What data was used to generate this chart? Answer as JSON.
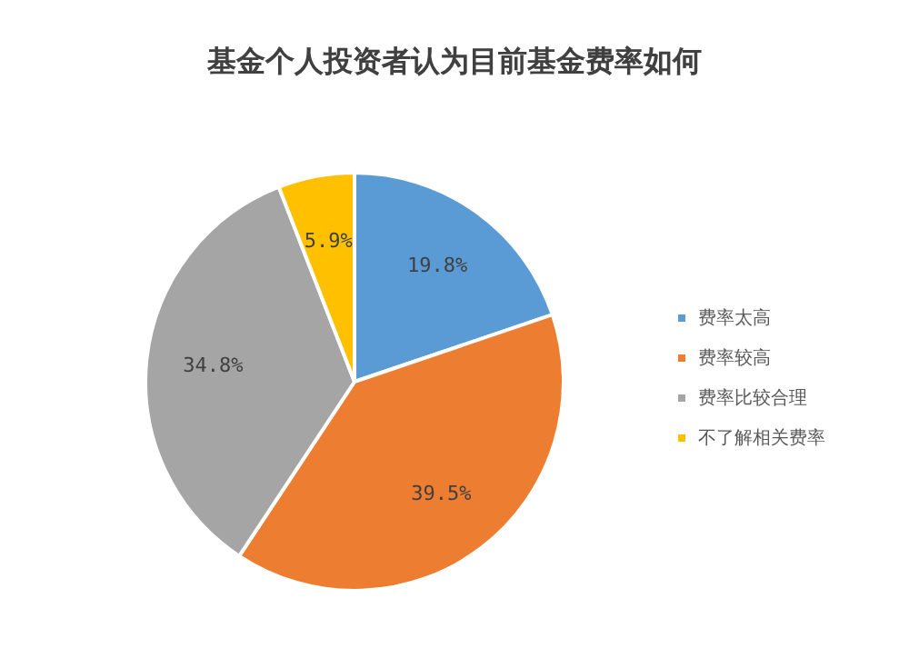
{
  "chart_data": {
    "type": "pie",
    "title": "基金个人投资者认为目前基金费率如何",
    "categories": [
      "费率太高",
      "费率较高",
      "费率比较合理",
      "不了解相关费率"
    ],
    "values": [
      19.8,
      39.5,
      34.8,
      5.9
    ],
    "colors": [
      "#5b9bd5",
      "#ed7d31",
      "#a5a5a5",
      "#ffc000"
    ],
    "value_labels": [
      "19.8%",
      "39.5%",
      "34.8%",
      "5.9%"
    ],
    "legend": "right"
  }
}
